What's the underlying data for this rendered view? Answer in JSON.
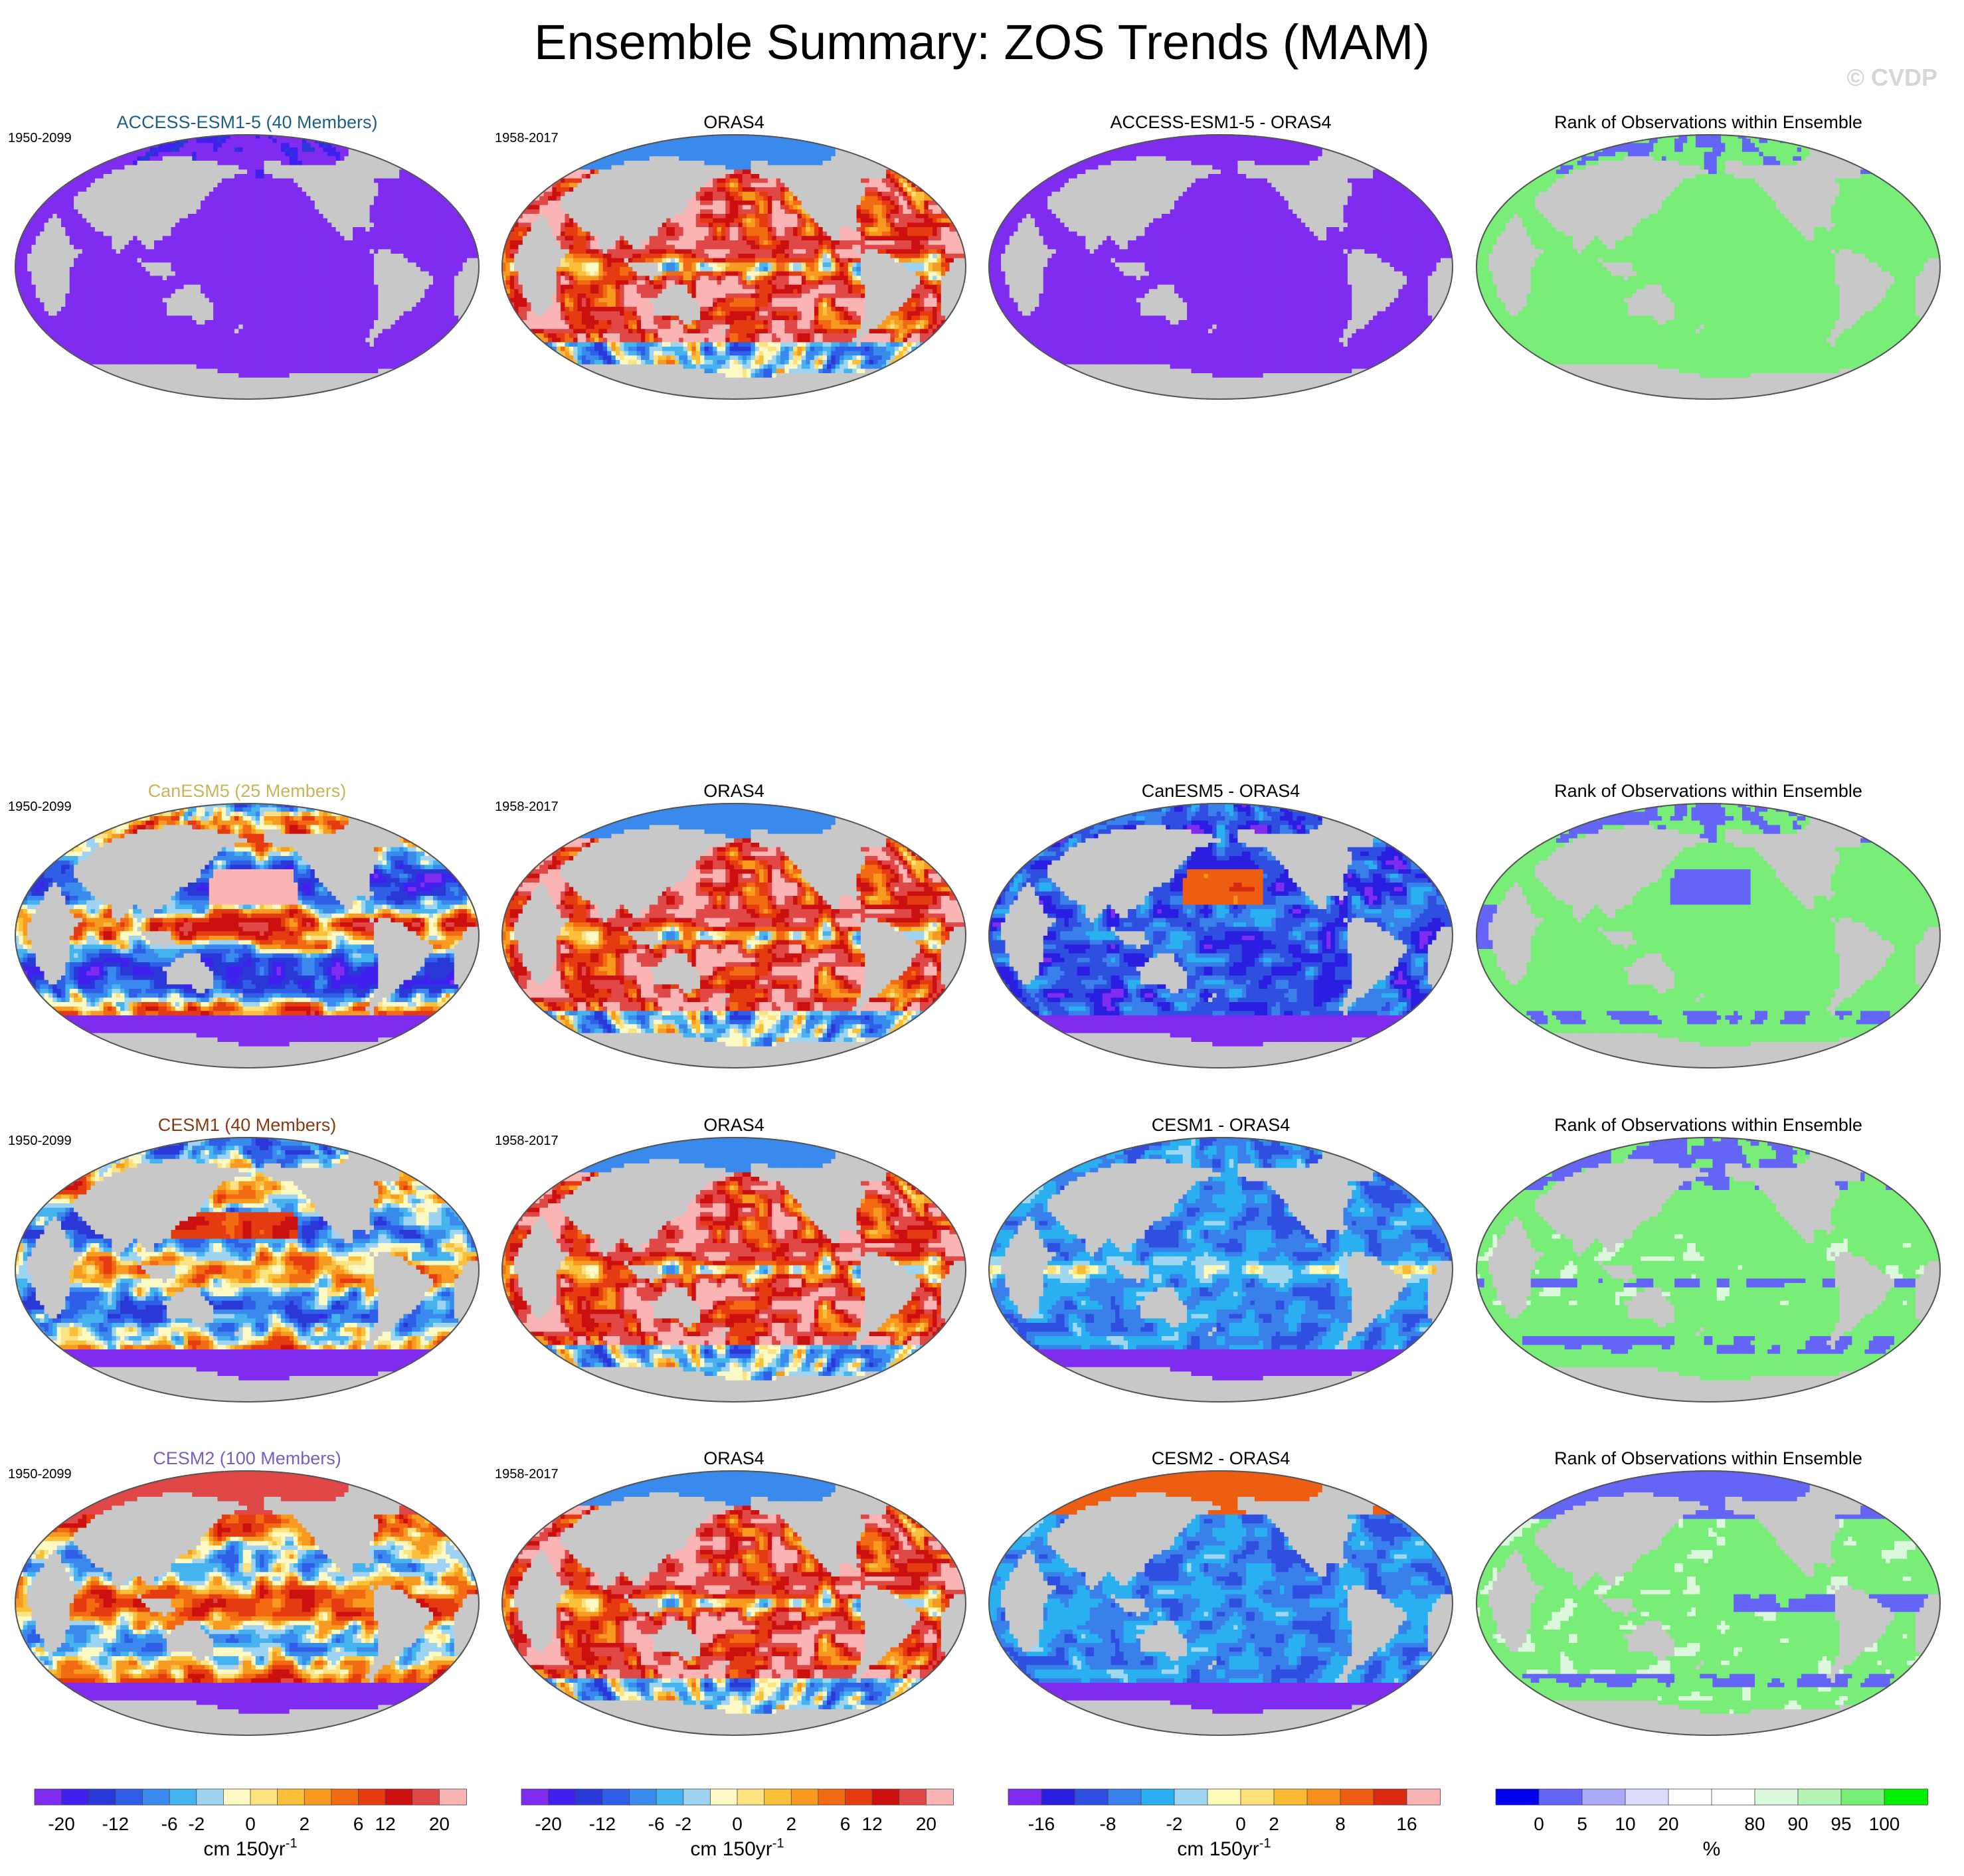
{
  "title": "Ensemble Summary: ZOS Trends (MAM)",
  "watermark": "© CVDP",
  "chart_data": {
    "type": "heatmap",
    "projection": "Robinson global maps (Pacific-centered)",
    "columns": [
      "model ensemble mean",
      "observations",
      "difference",
      "rank of observations"
    ],
    "rows": [
      {
        "panels": [
          {
            "title": "ACCESS-ESM1-5 (40 Members)",
            "title_color": "#1f5f87",
            "years": "1950-2099",
            "scheme": "trend",
            "pattern": "access"
          },
          {
            "title": "ORAS4",
            "title_color": "#000000",
            "years": "1958-2017",
            "scheme": "trend",
            "pattern": "oras"
          },
          {
            "title": "ACCESS-ESM1-5 - ORAS4",
            "title_color": "#000000",
            "years": "",
            "scheme": "diff",
            "pattern": "access_diff"
          },
          {
            "title": "Rank of Observations within Ensemble",
            "title_color": "#000000",
            "years": "",
            "scheme": "rank",
            "pattern": "rank_access"
          }
        ]
      },
      {
        "panels": [
          {
            "title": "CanESM5 (25 Members)",
            "title_color": "#c9b45a",
            "years": "1950-2099",
            "scheme": "trend",
            "pattern": "canesm"
          },
          {
            "title": "ORAS4",
            "title_color": "#000000",
            "years": "1958-2017",
            "scheme": "trend",
            "pattern": "oras"
          },
          {
            "title": "CanESM5 - ORAS4",
            "title_color": "#000000",
            "years": "",
            "scheme": "diff",
            "pattern": "canesm_diff"
          },
          {
            "title": "Rank of Observations within Ensemble",
            "title_color": "#000000",
            "years": "",
            "scheme": "rank",
            "pattern": "rank_canesm"
          }
        ]
      },
      {
        "panels": [
          {
            "title": "CESM1 (40 Members)",
            "title_color": "#8a3a12",
            "years": "1950-2099",
            "scheme": "trend",
            "pattern": "cesm1"
          },
          {
            "title": "ORAS4",
            "title_color": "#000000",
            "years": "1958-2017",
            "scheme": "trend",
            "pattern": "oras"
          },
          {
            "title": "CESM1 - ORAS4",
            "title_color": "#000000",
            "years": "",
            "scheme": "diff",
            "pattern": "cesm1_diff"
          },
          {
            "title": "Rank of Observations within Ensemble",
            "title_color": "#000000",
            "years": "",
            "scheme": "rank",
            "pattern": "rank_cesm1"
          }
        ]
      },
      {
        "panels": [
          {
            "title": "CESM2 (100 Members)",
            "title_color": "#7d5cc0",
            "years": "1950-2099",
            "scheme": "trend",
            "pattern": "cesm2"
          },
          {
            "title": "ORAS4",
            "title_color": "#000000",
            "years": "1958-2017",
            "scheme": "trend",
            "pattern": "oras"
          },
          {
            "title": "CESM2 - ORAS4",
            "title_color": "#000000",
            "years": "",
            "scheme": "diff",
            "pattern": "cesm2_diff"
          },
          {
            "title": "Rank of Observations within Ensemble",
            "title_color": "#000000",
            "years": "",
            "scheme": "rank",
            "pattern": "rank_cesm2"
          }
        ]
      }
    ],
    "colorbars": [
      {
        "scheme": "trend",
        "units": "cm 150yr",
        "units_sup": "-1",
        "colors": [
          "#7f2cf0",
          "#4020ee",
          "#2a38d8",
          "#2f5fe6",
          "#3a8aee",
          "#44b3ee",
          "#9fd3f2",
          "#fdf9c5",
          "#fde281",
          "#fbc03a",
          "#f79a1f",
          "#f26b13",
          "#e53b10",
          "#cc1010",
          "#e04848",
          "#fbb4b4"
        ],
        "tick_labels": [
          "-20",
          "-12",
          "-6",
          "-2",
          "0",
          "2",
          "6",
          "12",
          "20"
        ]
      },
      {
        "scheme": "trend",
        "units": "cm 150yr",
        "units_sup": "-1",
        "colors": [
          "#7f2cf0",
          "#4020ee",
          "#2a38d8",
          "#2f5fe6",
          "#3a8aee",
          "#44b3ee",
          "#9fd3f2",
          "#fdf9c5",
          "#fde281",
          "#fbc03a",
          "#f79a1f",
          "#f26b13",
          "#e53b10",
          "#cc1010",
          "#e04848",
          "#fbb4b4"
        ],
        "tick_labels": [
          "-20",
          "-12",
          "-6",
          "-2",
          "0",
          "2",
          "6",
          "12",
          "20"
        ]
      },
      {
        "scheme": "diff",
        "units": "cm 150yr",
        "units_sup": "-1",
        "colors": [
          "#7f2cf0",
          "#2a1ee0",
          "#2f4fe0",
          "#3a80ea",
          "#2ab0f0",
          "#9fd6f2",
          "#fdfbb8",
          "#fde07a",
          "#fbba34",
          "#f5901c",
          "#ee5e12",
          "#d82a10",
          "#fbb4b4"
        ],
        "tick_labels": [
          "-16",
          "-8",
          "-2",
          "0",
          "2",
          "8",
          "16"
        ]
      },
      {
        "scheme": "rank",
        "units": "%",
        "units_sup": "",
        "colors": [
          "#0000f0",
          "#6464f6",
          "#aaaaf8",
          "#dcdcfa",
          "#ffffff",
          "#ffffff",
          "#dcf8dc",
          "#b4f4b4",
          "#78ee78",
          "#00f000"
        ],
        "tick_labels": [
          "0",
          "5",
          "10",
          "20",
          "80",
          "90",
          "95",
          "100"
        ]
      }
    ]
  }
}
